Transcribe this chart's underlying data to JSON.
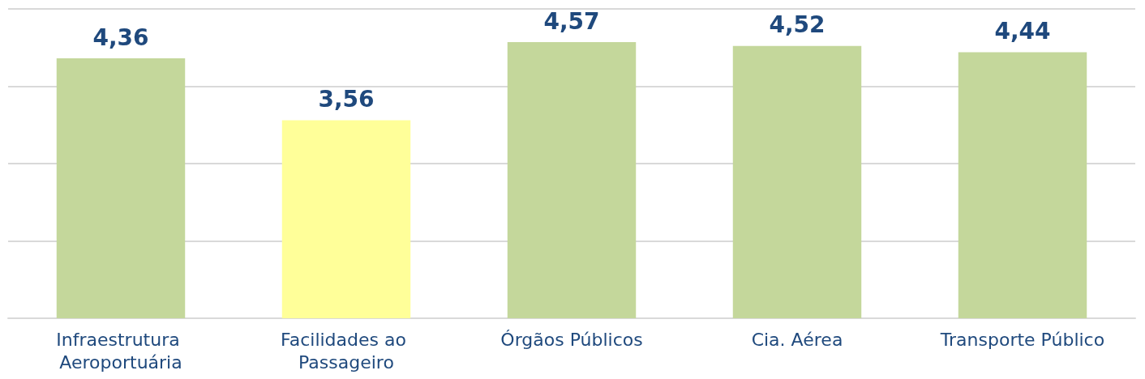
{
  "chart_data": {
    "type": "bar",
    "categories": [
      "Infraestrutura Aeroportuária",
      "Facilidades ao Passageiro",
      "Órgãos Públicos",
      "Cia. Aérea",
      "Transporte Público"
    ],
    "values": [
      4.36,
      3.56,
      4.57,
      4.52,
      4.44
    ],
    "value_labels": [
      "4,36",
      "3,56",
      "4,57",
      "4,52",
      "4,44"
    ],
    "colors": [
      "#c4d79b",
      "#ffff99",
      "#c4d79b",
      "#c4d79b",
      "#c4d79b"
    ],
    "ylim": [
      1,
      5
    ],
    "yticks": [
      {
        "value": 1,
        "label": null
      },
      {
        "value": 2,
        "label": null
      },
      {
        "value": 3,
        "label": null
      },
      {
        "value": 4,
        "label": null
      },
      {
        "value": 5,
        "label": null
      }
    ],
    "grid": "y",
    "tick_labels": "x"
  }
}
